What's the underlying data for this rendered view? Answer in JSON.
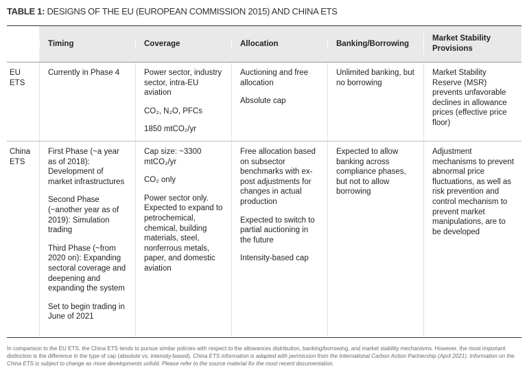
{
  "title": {
    "label": "TABLE 1:",
    "text": "DESIGNS OF THE EU (EUROPEAN COMMISSION 2015) AND CHINA ETS"
  },
  "table": {
    "header": [
      "Timing",
      "Coverage",
      "Allocation",
      "Banking/Borrowing",
      "Market Stability Provisions"
    ],
    "rows": [
      {
        "label": "EU ETS",
        "cells": [
          [
            "Currently in Phase 4"
          ],
          [
            "Power sector, industry sector, intra-EU aviation",
            "CO₂, N₂O, PFCs",
            "1850 mtCO₂/yr"
          ],
          [
            "Auctioning and free allocation",
            "Absolute cap"
          ],
          [
            "Unlimited banking, but no borrowing"
          ],
          [
            "Market Stability Reserve (MSR) prevents unfavorable declines in allowance prices (effective price floor)"
          ]
        ]
      },
      {
        "label": "China ETS",
        "cells": [
          [
            "First Phase (~a year as of 2018): Development of market infrastructures",
            "Second Phase (~another year as of 2019): Simulation trading",
            "Third Phase (~from 2020 on): Expanding sectoral coverage and deepening and expanding the system",
            "Set to begin trading in June of 2021"
          ],
          [
            "Cap size: ~3300 mtCO₂/yr",
            "CO₂ only",
            "Power sector only. Expected to expand to petrochemical, chemical, building materials, steel, nonferrous metals, paper, and domestic aviation"
          ],
          [
            "Free allocation based on subsector benchmarks with ex-post adjustments for changes in actual production",
            "Expected to switch to partial auctioning in the future",
            "Intensity-based cap"
          ],
          [
            "Expected to allow banking across compliance phases, but not to allow borrowing"
          ],
          [
            "Adjustment mechanisms to prevent abnormal price fluctuations, as well as risk prevention and control mechanism to prevent market manipulations, are to be developed"
          ]
        ]
      }
    ]
  },
  "footnote": {
    "text": "In comparison to the EU ETS, the China ETS tends to pursue similar policies with respect to the allowances distribution, banking/borrowing, and market stability mechanisms. However, the most important distinction is the difference in the type of cap (absolute vs. intensity-based).",
    "note": "China ETS information is adapted with permission from the International Carbon Action Partnership (April 2021). Information on the China ETS is subject to change as more developments unfold. Please refer to the source material for the most recent documentation."
  }
}
